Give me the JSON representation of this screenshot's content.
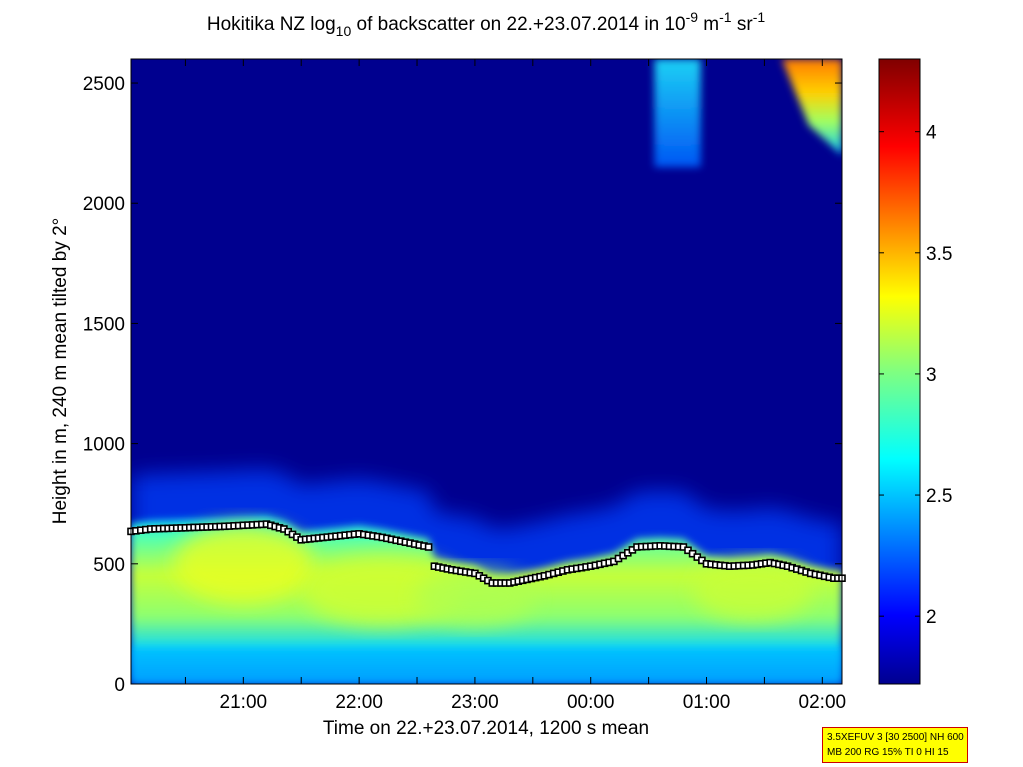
{
  "chart_data": {
    "type": "heatmap",
    "title": {
      "prefix": "Hokitika NZ log",
      "sub": "10",
      "middle": " of backscatter on 22.+23.07.2014 in 10",
      "sup1": "-9",
      "m": " m",
      "sup2": "-1",
      "sr": " sr",
      "sup3": "-1"
    },
    "xlabel": "Time on 22.+23.07.2014, 1200 s mean",
    "ylabel": "Height in m, 240 m mean tilted by 2°",
    "x_ticks": [
      "21:00",
      "22:00",
      "23:00",
      "00:00",
      "01:00",
      "02:00"
    ],
    "x_tick_hours": [
      21,
      22,
      23,
      24,
      25,
      26
    ],
    "xlim_hours": [
      20.03,
      26.17
    ],
    "y_ticks": [
      "0",
      "500",
      "1000",
      "1500",
      "2000",
      "2500"
    ],
    "y_tick_values": [
      0,
      500,
      1000,
      1500,
      2000,
      2500
    ],
    "ylim": [
      0,
      2600
    ],
    "colorbar": {
      "ticks": [
        "2",
        "2.5",
        "3",
        "3.5",
        "4"
      ],
      "tick_values": [
        2,
        2.5,
        3,
        3.5,
        4
      ],
      "range": [
        1.72,
        4.3
      ],
      "colormap": "jet"
    },
    "boundary_layer_height": {
      "times_hours": [
        20.03,
        20.2,
        20.5,
        20.8,
        21.0,
        21.2,
        21.35,
        21.5,
        21.8,
        22.0,
        22.2,
        22.4,
        22.6,
        22.65,
        22.8,
        23.0,
        23.15,
        23.3,
        23.6,
        23.8,
        24.0,
        24.2,
        24.4,
        24.6,
        24.8,
        25.0,
        25.2,
        25.4,
        25.55,
        25.7,
        25.9,
        26.1,
        26.17
      ],
      "heights_m": [
        635,
        645,
        650,
        655,
        660,
        665,
        645,
        600,
        615,
        625,
        610,
        590,
        570,
        490,
        475,
        460,
        420,
        420,
        450,
        475,
        490,
        510,
        570,
        575,
        570,
        500,
        490,
        495,
        505,
        490,
        460,
        440,
        440
      ]
    },
    "high_cloud": [
      {
        "start_hour": 24.55,
        "end_hour": 24.95,
        "base_m": 2150,
        "top_m": 2600
      },
      {
        "start_hour": 25.65,
        "end_hour": 26.17,
        "base_m": 2200,
        "top_m": 2600
      }
    ]
  },
  "info_box": {
    "line1": "3.5XEFUV 3 [30 2500] NH 600",
    "line2": "MB 200 RG 15% TI 0 HI 15"
  }
}
